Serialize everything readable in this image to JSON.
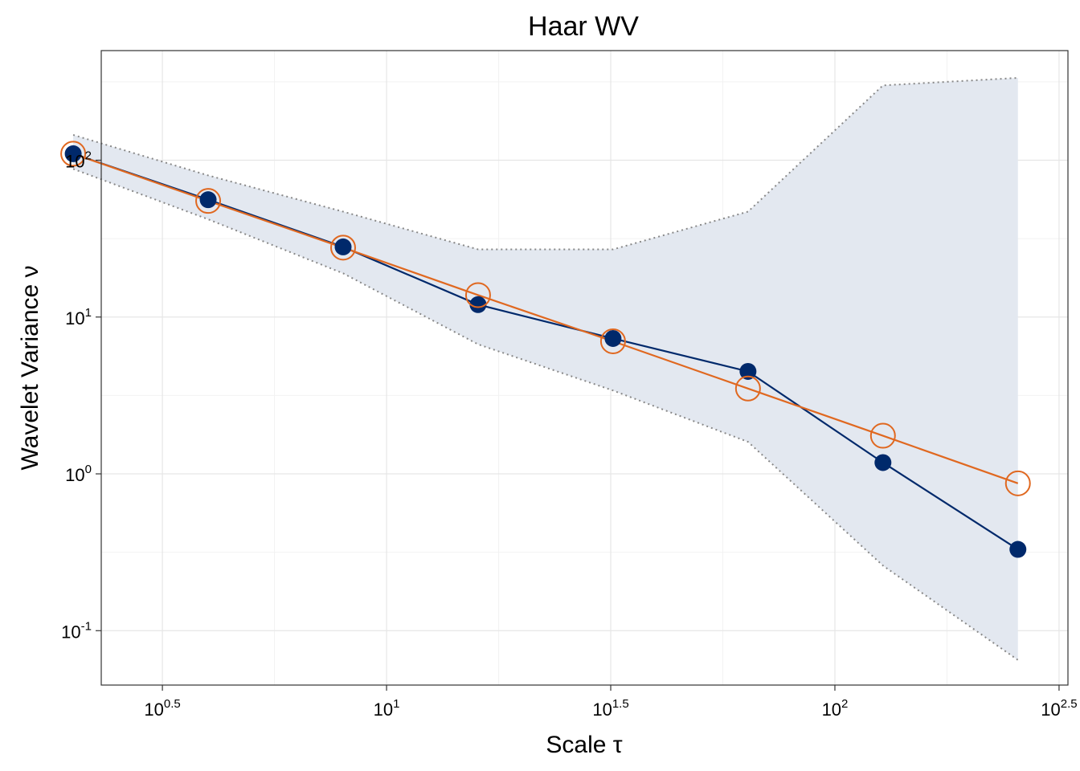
{
  "chart_data": {
    "type": "line",
    "title": "Haar WV",
    "xlabel": "Scale τ",
    "ylabel": "Wavelet Variance ν",
    "x_scale": "log10",
    "y_scale": "log10",
    "xlim": [
      2.31,
      331
    ],
    "ylim": [
      0.045,
      500
    ],
    "x_ticks": [
      {
        "value": 3.1623,
        "base": "10",
        "exp": "0.5"
      },
      {
        "value": 10,
        "base": "10",
        "exp": "1"
      },
      {
        "value": 31.623,
        "base": "10",
        "exp": "1.5"
      },
      {
        "value": 100,
        "base": "10",
        "exp": "2"
      },
      {
        "value": 316.23,
        "base": "10",
        "exp": "2.5"
      }
    ],
    "y_ticks": [
      {
        "value": 0.1,
        "base": "10",
        "exp": "-1"
      },
      {
        "value": 1,
        "base": "10",
        "exp": "0"
      },
      {
        "value": 10,
        "base": "10",
        "exp": "1"
      },
      {
        "value": 100,
        "base": "10",
        "exp": "2"
      }
    ],
    "x": [
      2,
      4,
      8,
      16,
      32,
      64,
      128,
      256
    ],
    "series": [
      {
        "values": [
          110,
          56,
          28,
          12,
          7.3,
          4.5,
          1.18,
          0.33
        ],
        "color": "#00296b",
        "marker": "filled-circle"
      },
      {
        "values": [
          110,
          55,
          27.7,
          13.8,
          7.0,
          3.5,
          1.75,
          0.87
        ],
        "color": "#e06820",
        "marker": "open-circle"
      }
    ],
    "ci_band": {
      "upper": [
        145,
        80,
        47,
        27,
        27,
        47,
        300,
        335
      ],
      "lower": [
        88,
        42,
        19,
        6.7,
        3.4,
        1.6,
        0.26,
        0.065
      ],
      "fill": "#e3e8f0",
      "line_color": "#888888"
    },
    "grid": true,
    "legend": "none"
  }
}
